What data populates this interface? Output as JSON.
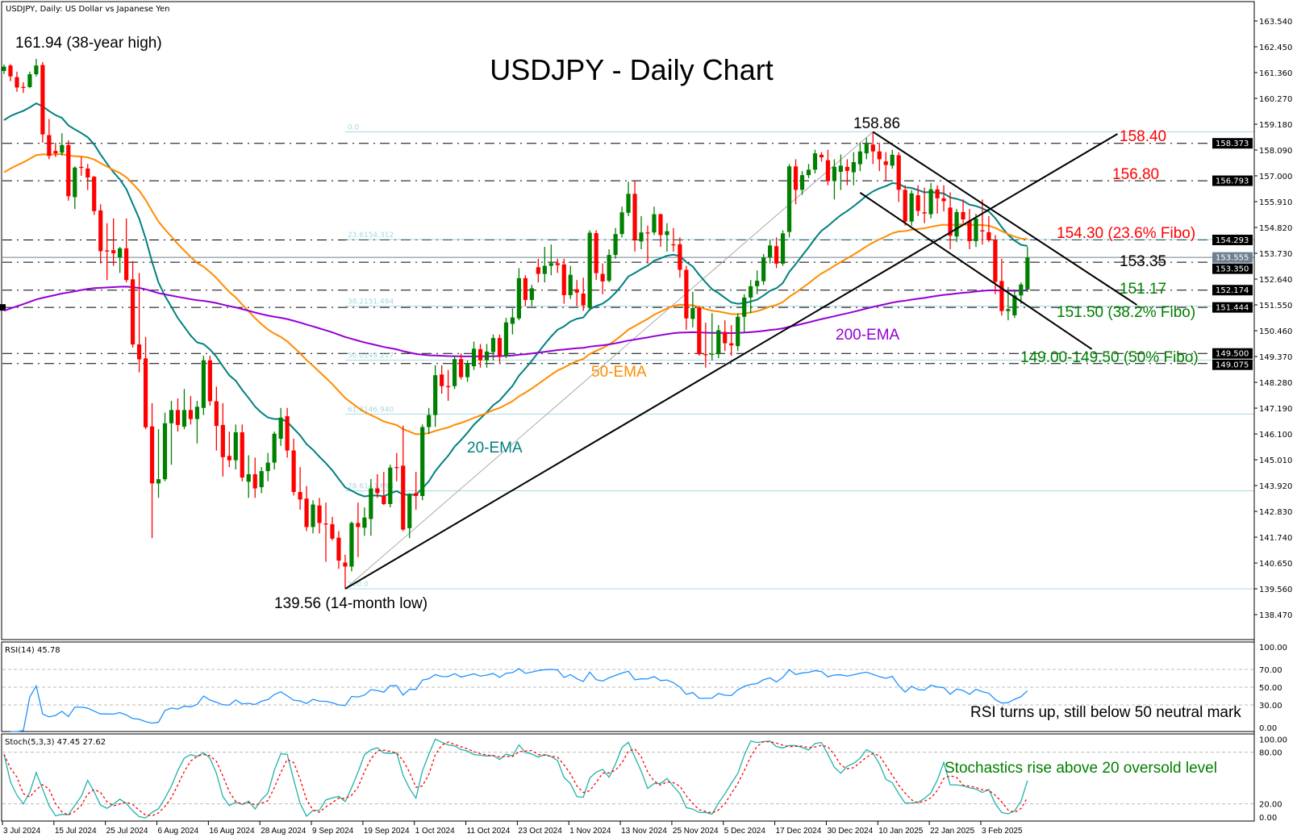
{
  "header": "USDJPY, Daily:  US Dollar vs Japanese Yen",
  "chart_data": {
    "type": "candlestick",
    "title": "USDJPY - Daily Chart",
    "symbol": "USDJPY",
    "timeframe": "Daily",
    "colors": {
      "bull": "#008000",
      "bear": "#ff0000",
      "ema20": "#008080",
      "ema50": "#ff8c00",
      "ema200": "#9400d3",
      "rsi": "#1e90ff",
      "stoch_main": "#20b2aa",
      "stoch_signal": "#ff0000",
      "fibo": "#a8d8e0",
      "price_line": "#708090"
    },
    "ylim": [
      138.0,
      164.2
    ],
    "y_ticks": [
      "163.540",
      "162.450",
      "161.360",
      "160.270",
      "159.180",
      "158.090",
      "157.000",
      "155.910",
      "154.820",
      "153.730",
      "152.640",
      "151.550",
      "150.460",
      "149.370",
      "148.280",
      "147.190",
      "146.100",
      "145.010",
      "143.920",
      "142.830",
      "141.740",
      "140.650",
      "139.560",
      "138.470"
    ],
    "x_tick_labels": [
      "3 Jul 2024",
      "15 Jul 2024",
      "25 Jul 2024",
      "6 Aug 2024",
      "16 Aug 2024",
      "28 Aug 2024",
      "9 Sep 2024",
      "19 Sep 2024",
      "1 Oct 2024",
      "11 Oct 2024",
      "23 Oct 2024",
      "1 Nov 2024",
      "13 Nov 2024",
      "25 Nov 2024",
      "5 Dec 2024",
      "17 Dec 2024",
      "30 Dec 2024",
      "10 Jan 2025",
      "22 Jan 2025",
      "3 Feb 2025"
    ],
    "x_tick_every_bars": 8,
    "ohlc": [
      [
        161.43,
        161.7,
        161.3,
        161.61
      ],
      [
        161.66,
        161.72,
        161.0,
        161.2
      ],
      [
        161.17,
        161.4,
        160.55,
        160.73
      ],
      [
        160.76,
        160.95,
        160.5,
        160.74
      ],
      [
        160.75,
        161.4,
        160.7,
        161.29
      ],
      [
        161.29,
        161.94,
        161.2,
        161.66
      ],
      [
        161.68,
        161.8,
        158.4,
        158.75
      ],
      [
        158.72,
        159.4,
        157.7,
        157.84
      ],
      [
        158.05,
        158.4,
        157.8,
        157.95
      ],
      [
        157.98,
        158.8,
        157.85,
        158.3
      ],
      [
        158.3,
        158.5,
        155.95,
        156.14
      ],
      [
        156.1,
        157.4,
        155.6,
        157.35
      ],
      [
        157.38,
        157.8,
        157.0,
        157.35
      ],
      [
        157.31,
        157.5,
        156.4,
        156.93
      ],
      [
        156.96,
        157.0,
        155.35,
        155.51
      ],
      [
        155.54,
        155.8,
        153.3,
        153.82
      ],
      [
        153.85,
        155.0,
        152.6,
        153.82
      ],
      [
        153.86,
        155.2,
        153.2,
        153.73
      ],
      [
        153.55,
        154.0,
        152.9,
        153.94
      ],
      [
        153.94,
        155.2,
        152.5,
        152.6
      ],
      [
        152.63,
        153.4,
        149.75,
        149.88
      ],
      [
        149.88,
        152.9,
        148.7,
        149.25
      ],
      [
        149.29,
        150.2,
        146.3,
        146.38
      ],
      [
        146.42,
        147.4,
        141.7,
        144.01
      ],
      [
        144.01,
        146.3,
        143.4,
        144.19
      ],
      [
        144.19,
        147.0,
        144.1,
        146.55
      ],
      [
        146.55,
        147.5,
        144.8,
        147.11
      ],
      [
        147.11,
        147.6,
        146.2,
        146.48
      ],
      [
        146.41,
        148.0,
        146.3,
        147.11
      ],
      [
        147.11,
        147.7,
        146.5,
        146.73
      ],
      [
        146.73,
        147.5,
        145.7,
        147.25
      ],
      [
        147.2,
        149.4,
        146.9,
        149.21
      ],
      [
        149.21,
        149.4,
        147.3,
        147.48
      ],
      [
        147.48,
        148.1,
        145.4,
        146.44
      ],
      [
        146.48,
        147.4,
        144.3,
        145.12
      ],
      [
        145.17,
        146.2,
        144.7,
        144.99
      ],
      [
        144.99,
        146.5,
        144.6,
        146.17
      ],
      [
        146.17,
        146.5,
        144.1,
        144.26
      ],
      [
        144.08,
        145.2,
        143.4,
        144.4
      ],
      [
        144.4,
        145.1,
        143.4,
        143.8
      ],
      [
        143.85,
        144.7,
        143.6,
        144.53
      ],
      [
        144.53,
        145.3,
        144.1,
        144.89
      ],
      [
        144.89,
        146.2,
        144.6,
        146.11
      ],
      [
        145.9,
        147.2,
        145.6,
        146.79
      ],
      [
        146.85,
        147.2,
        145.1,
        145.4
      ],
      [
        145.4,
        145.9,
        143.5,
        143.65
      ],
      [
        143.65,
        144.7,
        142.9,
        143.33
      ],
      [
        143.37,
        143.9,
        142.0,
        142.17
      ],
      [
        142.17,
        143.3,
        141.9,
        143.12
      ],
      [
        143.08,
        143.4,
        141.9,
        142.34
      ],
      [
        142.32,
        143.2,
        140.7,
        142.3
      ],
      [
        142.29,
        142.6,
        141.6,
        141.68
      ],
      [
        141.72,
        142.0,
        140.4,
        140.75
      ],
      [
        140.67,
        141.0,
        139.56,
        140.5
      ],
      [
        140.5,
        142.4,
        140.3,
        142.34
      ],
      [
        142.34,
        143.2,
        140.9,
        142.17
      ],
      [
        142.14,
        143.0,
        141.8,
        142.57
      ],
      [
        142.51,
        144.2,
        141.8,
        143.8
      ],
      [
        143.8,
        144.4,
        143.4,
        143.6
      ],
      [
        143.48,
        144.5,
        143.1,
        143.14
      ],
      [
        143.14,
        144.8,
        143.0,
        144.68
      ],
      [
        144.7,
        145.3,
        144.1,
        144.68
      ],
      [
        144.76,
        146.45,
        142.0,
        142.06
      ],
      [
        142.12,
        143.6,
        141.7,
        143.56
      ],
      [
        143.6,
        144.5,
        142.9,
        143.48
      ],
      [
        143.48,
        146.5,
        143.3,
        146.39
      ],
      [
        146.39,
        147.2,
        146.1,
        146.9
      ],
      [
        146.9,
        149.0,
        146.4,
        148.58
      ],
      [
        148.61,
        149.0,
        147.8,
        148.12
      ],
      [
        148.12,
        148.8,
        147.5,
        148.1
      ],
      [
        148.12,
        149.4,
        148.0,
        149.26
      ],
      [
        149.26,
        149.5,
        148.4,
        148.5
      ],
      [
        148.5,
        149.2,
        148.3,
        149.07
      ],
      [
        148.96,
        150.0,
        148.8,
        149.7
      ],
      [
        149.68,
        149.9,
        148.9,
        149.21
      ],
      [
        149.21,
        149.9,
        148.9,
        149.58
      ],
      [
        149.56,
        150.3,
        149.2,
        150.15
      ],
      [
        150.15,
        150.3,
        149.1,
        149.39
      ],
      [
        149.39,
        151.0,
        149.3,
        150.81
      ],
      [
        150.75,
        151.4,
        150.3,
        151.02
      ],
      [
        150.98,
        153.1,
        150.9,
        152.68
      ],
      [
        152.68,
        152.8,
        151.5,
        151.76
      ],
      [
        151.76,
        152.4,
        151.5,
        152.25
      ],
      [
        153.14,
        153.5,
        152.5,
        152.86
      ],
      [
        152.86,
        154.0,
        152.5,
        153.2
      ],
      [
        153.2,
        154.1,
        152.8,
        153.31
      ],
      [
        153.31,
        153.5,
        152.9,
        153.23
      ],
      [
        153.26,
        153.5,
        151.6,
        151.96
      ],
      [
        151.96,
        153.2,
        151.8,
        152.82
      ],
      [
        152.21,
        152.6,
        151.5,
        152.07
      ],
      [
        152.03,
        152.7,
        151.3,
        151.53
      ],
      [
        151.42,
        154.7,
        151.3,
        154.6
      ],
      [
        154.58,
        154.7,
        152.6,
        152.89
      ],
      [
        152.86,
        153.3,
        152.0,
        152.54
      ],
      [
        152.57,
        153.9,
        152.5,
        153.66
      ],
      [
        153.66,
        154.8,
        153.5,
        154.54
      ],
      [
        154.54,
        155.7,
        154.4,
        155.46
      ],
      [
        155.44,
        156.75,
        155.3,
        156.24
      ],
      [
        156.24,
        156.79,
        153.8,
        154.29
      ],
      [
        154.23,
        155.3,
        153.9,
        154.61
      ],
      [
        154.61,
        154.9,
        153.3,
        154.59
      ],
      [
        154.61,
        155.7,
        154.5,
        155.38
      ],
      [
        155.38,
        155.4,
        154.0,
        154.5
      ],
      [
        154.5,
        155.0,
        153.8,
        154.66
      ],
      [
        154.11,
        154.8,
        153.8,
        154.09
      ],
      [
        154.11,
        154.4,
        152.7,
        153.03
      ],
      [
        153.03,
        153.2,
        150.5,
        150.98
      ],
      [
        150.96,
        152.1,
        150.6,
        151.42
      ],
      [
        151.42,
        151.5,
        149.4,
        149.47
      ],
      [
        149.47,
        150.8,
        148.9,
        149.45
      ],
      [
        149.47,
        151.2,
        149.2,
        149.49
      ],
      [
        149.47,
        150.7,
        149.3,
        150.48
      ],
      [
        150.41,
        150.9,
        149.6,
        149.93
      ],
      [
        149.93,
        150.7,
        149.4,
        149.84
      ],
      [
        149.81,
        151.2,
        149.6,
        151.05
      ],
      [
        151.05,
        152.0,
        150.4,
        151.86
      ],
      [
        151.86,
        152.6,
        151.2,
        152.34
      ],
      [
        152.34,
        153.0,
        152.0,
        152.57
      ],
      [
        152.55,
        153.7,
        152.4,
        153.55
      ],
      [
        153.55,
        154.3,
        153.3,
        154.06
      ],
      [
        154.03,
        154.4,
        153.1,
        153.29
      ],
      [
        153.29,
        154.7,
        153.2,
        154.57
      ],
      [
        154.63,
        157.5,
        154.4,
        157.4
      ],
      [
        157.4,
        157.7,
        155.8,
        156.41
      ],
      [
        156.41,
        157.2,
        156.2,
        157.03
      ],
      [
        157.03,
        157.5,
        156.9,
        157.26
      ],
      [
        157.26,
        158.1,
        157.1,
        157.95
      ],
      [
        157.89,
        158.0,
        157.6,
        157.78
      ],
      [
        157.66,
        158.1,
        156.6,
        156.78
      ],
      [
        156.78,
        157.7,
        156.0,
        157.38
      ],
      [
        157.17,
        157.9,
        156.4,
        157.43
      ],
      [
        157.38,
        157.7,
        156.6,
        157.21
      ],
      [
        157.15,
        158.0,
        156.6,
        157.58
      ],
      [
        157.49,
        158.4,
        157.2,
        158.03
      ],
      [
        157.95,
        158.6,
        157.7,
        158.35
      ],
      [
        158.32,
        158.86,
        157.5,
        158.03
      ],
      [
        158.03,
        158.4,
        157.2,
        157.7
      ],
      [
        157.61,
        158.0,
        156.8,
        157.46
      ],
      [
        157.43,
        158.1,
        157.3,
        157.89
      ],
      [
        157.87,
        158.0,
        155.9,
        156.41
      ],
      [
        156.41,
        156.6,
        154.9,
        155.07
      ],
      [
        155.07,
        156.4,
        154.9,
        156.26
      ],
      [
        156.18,
        156.6,
        155.3,
        155.52
      ],
      [
        155.46,
        156.5,
        155.0,
        155.41
      ],
      [
        155.38,
        156.7,
        155.2,
        156.43
      ],
      [
        156.43,
        156.6,
        155.4,
        156.05
      ],
      [
        156.05,
        156.6,
        155.5,
        155.93
      ],
      [
        155.66,
        156.3,
        153.9,
        154.47
      ],
      [
        154.44,
        155.6,
        154.2,
        155.47
      ],
      [
        155.47,
        156.0,
        155.0,
        155.16
      ],
      [
        155.1,
        155.6,
        153.9,
        154.24
      ],
      [
        154.24,
        155.4,
        154.0,
        155.2
      ],
      [
        154.7,
        156.0,
        154.1,
        154.65
      ],
      [
        154.62,
        155.3,
        154.2,
        154.28
      ],
      [
        154.28,
        154.5,
        152.0,
        152.52
      ],
      [
        152.56,
        153.5,
        151.1,
        151.29
      ],
      [
        151.29,
        152.3,
        150.9,
        151.37
      ],
      [
        151.11,
        152.2,
        151.0,
        151.95
      ],
      [
        151.95,
        152.5,
        151.6,
        152.41
      ],
      [
        152.2,
        154.0,
        152.1,
        153.55
      ]
    ],
    "ema_lines": [
      {
        "label": "20-EMA",
        "period": 20,
        "color": "#008080",
        "first_value": 159.35
      },
      {
        "label": "50-EMA",
        "period": 50,
        "color": "#ff8c00",
        "first_value": 157.15
      },
      {
        "label": "200-EMA",
        "period": 200,
        "color": "#9400d3",
        "first_value": 151.3
      }
    ],
    "horizontal_levels": [
      158.373,
      156.793,
      154.293,
      153.35,
      152.174,
      151.444,
      149.5,
      149.075
    ],
    "current_price": 153.555,
    "axis_markers": [
      "158.373",
      "156.793",
      "154.293",
      "153.555",
      "153.350",
      "152.174",
      "151.444",
      "149.500",
      "149.075"
    ],
    "fibonacci": {
      "from": {
        "bar": 53,
        "price": 139.56
      },
      "to": {
        "bar": 135,
        "price": 158.86
      },
      "levels": [
        {
          "label": "0.0",
          "price": 158.86
        },
        {
          "label": "23.6154.312",
          "price": 154.312
        },
        {
          "label": "38.2151.494",
          "price": 151.494
        },
        {
          "label": "50.0149.217",
          "price": 149.217
        },
        {
          "label": "61.8146.940",
          "price": 146.94
        },
        {
          "label": "78.6143.698",
          "price": 143.698
        },
        {
          "label": "100.0",
          "price": 139.56
        }
      ]
    },
    "trendlines": [
      {
        "name": "ascending-support",
        "from": {
          "bar": 53,
          "price": 139.56
        },
        "to": {
          "bar": 173,
          "price": 158.77
        }
      },
      {
        "name": "channel-upper",
        "from": {
          "bar": 135,
          "price": 158.86
        },
        "to": {
          "bar": 176,
          "price": 151.55
        }
      },
      {
        "name": "channel-lower",
        "from": {
          "bar": 133,
          "price": 156.29
        },
        "to": {
          "bar": 169,
          "price": 149.68
        }
      }
    ],
    "annotations": {
      "high": "161.94 (38-year high)",
      "peak": "158.86",
      "low": "139.56 (14-month low)",
      "r1": "158.40",
      "r2": "156.80",
      "r3": "154.30 (23.6% Fibo)",
      "r4": "153.35",
      "s1": "151.17",
      "s2": "151.50 (38.2% Fibo)",
      "s3": "149.00-149.50 (50% Fibo)"
    },
    "rsi": {
      "label": "RSI(14) 45.78",
      "period": 14,
      "levels": [
        70,
        50,
        30
      ],
      "ticks": [
        "100.00",
        "70.00",
        "50.00",
        "30.00",
        "0.00"
      ],
      "note": "RSI turns up, still below 50 neutral mark"
    },
    "stoch": {
      "label": "Stoch(5,3,3) 47.45 27.62",
      "k": 5,
      "d": 3,
      "slowing": 3,
      "levels": [
        80,
        20
      ],
      "ticks": [
        "100.00",
        "80.00",
        "20.00",
        "0.00"
      ],
      "note": "Stochastics rise above 20 oversold level"
    }
  }
}
